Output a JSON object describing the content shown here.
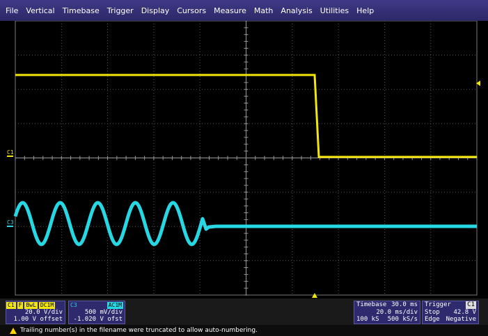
{
  "menu": {
    "items": [
      "File",
      "Vertical",
      "Timebase",
      "Trigger",
      "Display",
      "Cursors",
      "Measure",
      "Math",
      "Analysis",
      "Utilities",
      "Help"
    ]
  },
  "traces": {
    "c1_label": "C1",
    "c3_label": "C3",
    "c1_color": "#f2e60c",
    "c3_color": "#26d8e3"
  },
  "descriptors": {
    "c1": {
      "name": "C1",
      "badges": [
        "F",
        "BwL",
        "DC1M"
      ],
      "scale": "20.0 V/div",
      "offset": "1.00 V offset"
    },
    "c3": {
      "name": "C3",
      "coupling": "AC1M",
      "scale": "500 mV/div",
      "offset": "-1.020 V ofst"
    },
    "timebase": {
      "label": "Timebase",
      "delay": "30.0 ms",
      "time_div": "20.0 ms/div",
      "samples": "100 kS",
      "rate": "500 kS/s"
    },
    "trigger": {
      "label": "Trigger",
      "source": "C1",
      "mode": "Stop",
      "level": "42.8 V",
      "type": "Edge",
      "slope": "Negative"
    }
  },
  "status": {
    "message": "Trailing number(s) in the filename were truncated to allow auto-numbering.",
    "icon": "warning-icon"
  }
}
